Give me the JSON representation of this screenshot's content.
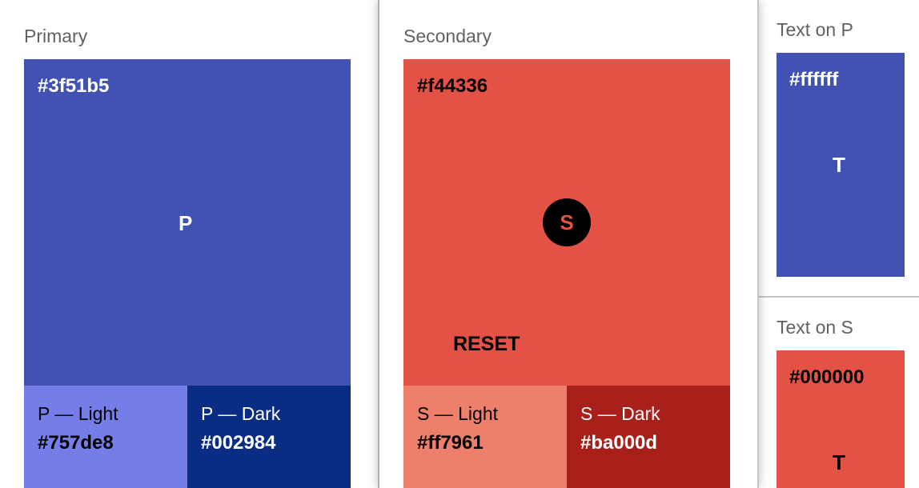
{
  "primary": {
    "label": "Primary",
    "hex": "#3f51b5",
    "letter": "P",
    "color": "#4152b3",
    "light": {
      "name": "P — Light",
      "hex": "#757de8",
      "color": "#757de8"
    },
    "dark": {
      "name": "P — Dark",
      "hex": "#002984",
      "color": "#0a2d83"
    }
  },
  "secondary": {
    "label": "Secondary",
    "hex": "#f44336",
    "letter": "S",
    "reset": "RESET",
    "color": "#e35244",
    "light": {
      "name": "S — Light",
      "hex": "#ff7961",
      "color": "#ee7f6a"
    },
    "dark": {
      "name": "S — Dark",
      "hex": "#ba000d",
      "color": "#a9201b"
    }
  },
  "text_on_p": {
    "label": "Text on P",
    "hex": "#ffffff",
    "letter": "T"
  },
  "text_on_s": {
    "label": "Text on S",
    "hex": "#000000",
    "letter": "T"
  }
}
